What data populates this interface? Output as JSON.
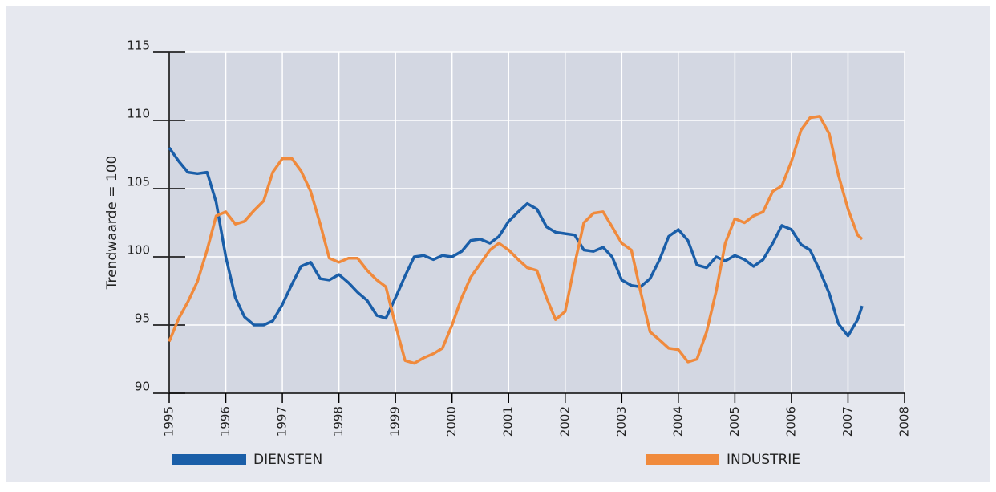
{
  "chart_data": {
    "type": "line",
    "y_label": "Trendwaarde  = 100",
    "x": [
      1995.0,
      1995.17,
      1995.33,
      1995.5,
      1995.67,
      1995.83,
      1996.0,
      1996.17,
      1996.33,
      1996.5,
      1996.67,
      1996.83,
      1997.0,
      1997.17,
      1997.33,
      1997.5,
      1997.67,
      1997.83,
      1998.0,
      1998.17,
      1998.33,
      1998.5,
      1998.67,
      1998.83,
      1999.0,
      1999.17,
      1999.33,
      1999.5,
      1999.67,
      1999.83,
      2000.0,
      2000.17,
      2000.33,
      2000.5,
      2000.67,
      2000.83,
      2001.0,
      2001.17,
      2001.33,
      2001.5,
      2001.67,
      2001.83,
      2002.0,
      2002.17,
      2002.33,
      2002.5,
      2002.67,
      2002.83,
      2003.0,
      2003.17,
      2003.33,
      2003.5,
      2003.67,
      2003.83,
      2004.0,
      2004.17,
      2004.33,
      2004.5,
      2004.67,
      2004.83,
      2005.0,
      2005.17,
      2005.33,
      2005.5,
      2005.67,
      2005.83,
      2006.0,
      2006.17,
      2006.33,
      2006.5,
      2006.67,
      2006.83,
      2007.0,
      2007.17,
      2007.25
    ],
    "series": [
      {
        "name": "DIENSTEN",
        "color": "#1a5ea8",
        "values": [
          108,
          107,
          106.2,
          106.1,
          106.2,
          104,
          100,
          97,
          95.6,
          95.0,
          95.0,
          95.3,
          96.5,
          98,
          99.3,
          99.6,
          98.4,
          98.3,
          98.7,
          98.1,
          97.4,
          96.8,
          95.7,
          95.5,
          97,
          98.6,
          100,
          100.1,
          99.8,
          100.1,
          100,
          100.4,
          101.2,
          101.3,
          101.0,
          101.5,
          102.6,
          103.3,
          103.9,
          103.5,
          102.2,
          101.8,
          101.7,
          101.6,
          100.5,
          100.4,
          100.7,
          100,
          98.3,
          97.9,
          97.8,
          98.4,
          99.8,
          101.5,
          102,
          101.2,
          99.4,
          99.2,
          100,
          99.7,
          100.1,
          99.8,
          99.3,
          99.8,
          101,
          102.3,
          102,
          100.9,
          100.5,
          99,
          97.3,
          95.1,
          94.2,
          95.4,
          96.4
        ]
      },
      {
        "name": "INDUSTRIE",
        "color": "#f08a3c",
        "values": [
          93.8,
          95.5,
          96.7,
          98.2,
          100.5,
          103,
          103.3,
          102.4,
          102.6,
          103.4,
          104.1,
          106.2,
          107.2,
          107.2,
          106.3,
          104.8,
          102.4,
          99.9,
          99.6,
          99.9,
          99.9,
          99,
          98.3,
          97.8,
          95,
          92.4,
          92.2,
          92.6,
          92.9,
          93.3,
          95,
          97,
          98.5,
          99.5,
          100.5,
          101,
          100.5,
          99.8,
          99.2,
          99,
          97,
          95.4,
          96,
          99.5,
          102.5,
          103.2,
          103.3,
          102.2,
          101,
          100.5,
          97.5,
          94.5,
          93.9,
          93.3,
          93.2,
          92.3,
          92.5,
          94.5,
          97.5,
          101,
          102.8,
          102.5,
          103,
          103.3,
          104.8,
          105.2,
          107,
          109.3,
          110.2,
          110.3,
          109,
          106,
          103.5,
          101.6,
          101.3
        ]
      }
    ],
    "xlim": [
      1995,
      2008
    ],
    "xticks": [
      1995,
      1996,
      1997,
      1998,
      1999,
      2000,
      2001,
      2002,
      2003,
      2004,
      2005,
      2006,
      2007,
      2008
    ],
    "ylim": [
      90,
      115
    ],
    "yticks": [
      90,
      95,
      100,
      105,
      110,
      115
    ],
    "grid": true
  }
}
